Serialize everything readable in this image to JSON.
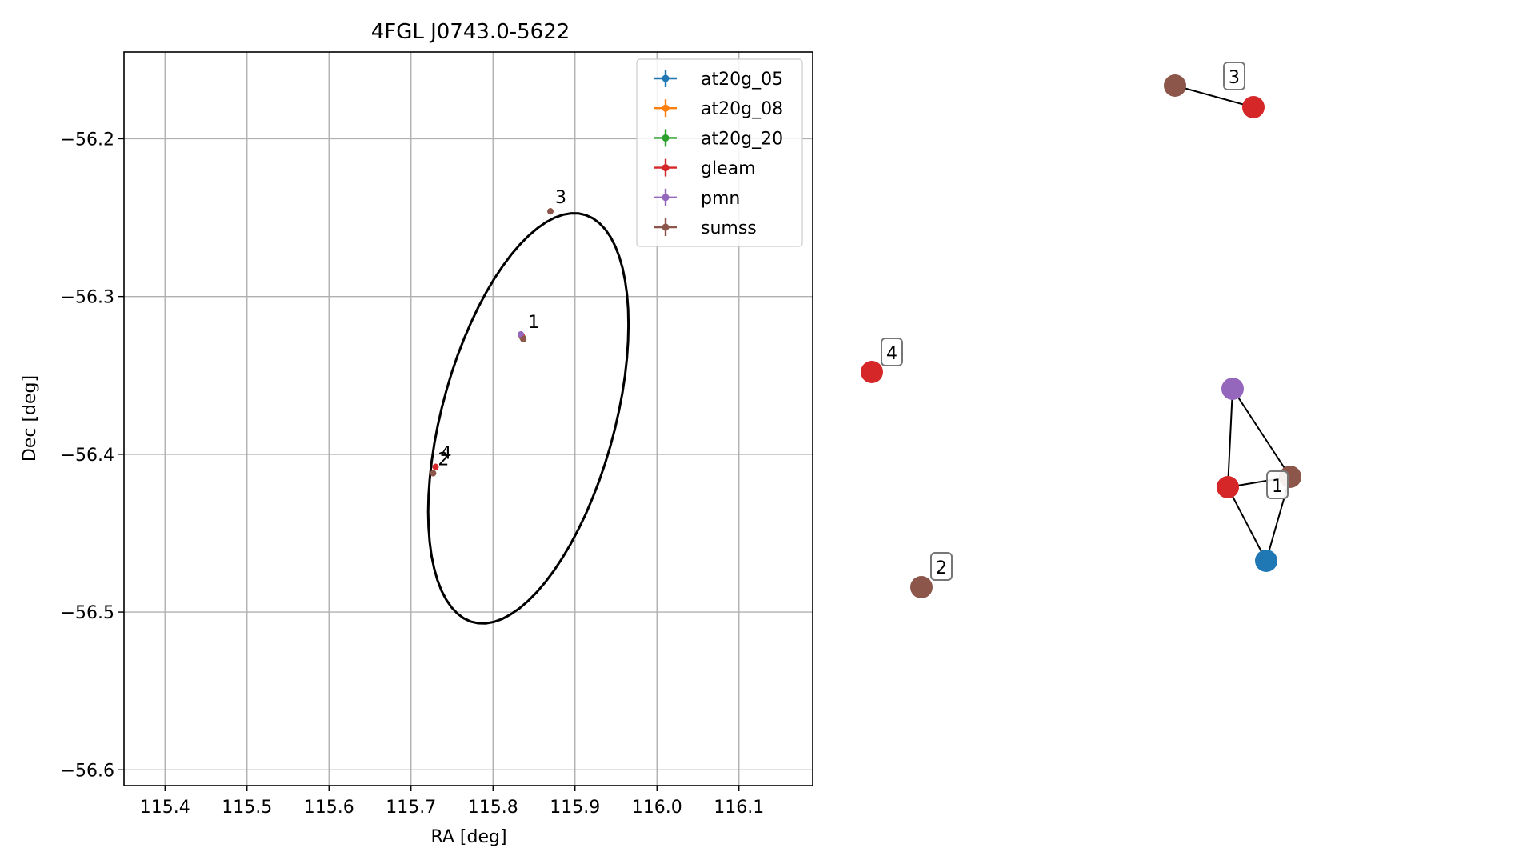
{
  "chart_data": [
    {
      "type": "scatter",
      "title": "4FGL J0743.0-5622",
      "xlabel": "RA [deg]",
      "ylabel": "Dec [deg]",
      "xlim": [
        115.35,
        116.19
      ],
      "ylim": [
        -56.61,
        -56.145
      ],
      "xticks": [
        115.4,
        115.5,
        115.6,
        115.7,
        115.8,
        115.9,
        116.0,
        116.1
      ],
      "xtick_labels": [
        "115.4",
        "115.5",
        "115.6",
        "115.7",
        "115.8",
        "115.9",
        "116.0",
        "116.1"
      ],
      "yticks": [
        -56.2,
        -56.3,
        -56.4,
        -56.5,
        -56.6
      ],
      "ytick_labels": [
        "−56.2",
        "−56.3",
        "−56.4",
        "−56.5",
        "−56.6"
      ],
      "grid": true,
      "legend_position": "top-right",
      "ellipse": {
        "center_ra": 115.8431,
        "center_dec": -56.3772,
        "semi_major": 0.1525,
        "semi_minor": 0.0926,
        "angle_deg": 48.9,
        "color": "#000000"
      },
      "series": [
        {
          "name": "at20g_05",
          "color": "#1f77b4",
          "points": [
            [
              115.836,
              -56.326
            ]
          ]
        },
        {
          "name": "at20g_08",
          "color": "#ff7f0e",
          "points": [
            [
              115.836,
              -56.326
            ]
          ]
        },
        {
          "name": "at20g_20",
          "color": "#2ca02c",
          "points": [
            [
              115.836,
              -56.326
            ]
          ]
        },
        {
          "name": "gleam",
          "color": "#d62728",
          "points": [
            [
              115.835,
              -56.325
            ],
            [
              115.73,
              -56.408
            ]
          ]
        },
        {
          "name": "pmn",
          "color": "#9467bd",
          "points": [
            [
              115.834,
              -56.324
            ]
          ]
        },
        {
          "name": "sumss",
          "color": "#8c564b",
          "points": [
            [
              115.837,
              -56.327
            ],
            [
              115.727,
              -56.412
            ],
            [
              115.87,
              -56.246
            ]
          ]
        }
      ],
      "annotations": [
        {
          "text": "1",
          "ra": 115.837,
          "dec": -56.325
        },
        {
          "text": "2",
          "ra": 115.727,
          "dec": -56.412
        },
        {
          "text": "3",
          "ra": 115.87,
          "dec": -56.246
        },
        {
          "text": "4",
          "ra": 115.73,
          "dec": -56.408
        }
      ]
    },
    {
      "type": "network",
      "nodes": [
        {
          "id": "n-sumss-3",
          "color": "#8c564b"
        },
        {
          "id": "n-gleam-3",
          "color": "#d62728"
        },
        {
          "id": "n-gleam-4",
          "color": "#d62728"
        },
        {
          "id": "n-sumss-2",
          "color": "#8c564b"
        },
        {
          "id": "n-pmn-1",
          "color": "#9467bd"
        },
        {
          "id": "n-sumss-1",
          "color": "#8c564b"
        },
        {
          "id": "n-gleam-1",
          "color": "#d62728"
        },
        {
          "id": "n-at20g-1",
          "color": "#1f77b4"
        }
      ],
      "edges": [
        [
          "n-sumss-3",
          "n-gleam-3"
        ],
        [
          "n-pmn-1",
          "n-gleam-1"
        ],
        [
          "n-pmn-1",
          "n-sumss-1"
        ],
        [
          "n-gleam-1",
          "n-sumss-1"
        ],
        [
          "n-gleam-1",
          "n-at20g-1"
        ],
        [
          "n-sumss-1",
          "n-at20g-1"
        ]
      ],
      "labels": [
        {
          "text": "3",
          "node": "n-sumss-3"
        },
        {
          "text": "4",
          "node": "n-gleam-4"
        },
        {
          "text": "2",
          "node": "n-sumss-2"
        },
        {
          "text": "1",
          "node": "n-gleam-1"
        }
      ]
    }
  ]
}
